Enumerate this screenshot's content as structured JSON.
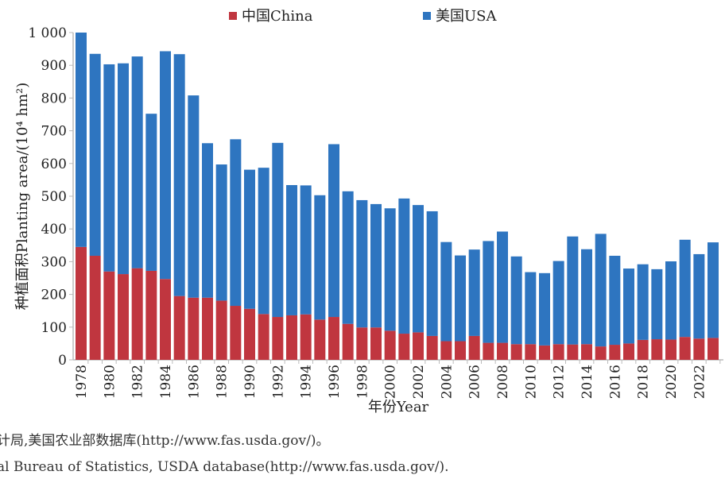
{
  "chart_data": {
    "type": "bar",
    "stacked": true,
    "legend": [
      "中国China",
      "美国USA"
    ],
    "legend_position": "top",
    "xlabel": "年份Year",
    "ylabel": "种植面积Planting area/(10⁴ hm²)",
    "ylim": [
      0,
      1000
    ],
    "yticks": [
      "0",
      "100",
      "200",
      "300",
      "400",
      "500",
      "600",
      "700",
      "800",
      "900",
      "1 000"
    ],
    "categories": [
      1978,
      1979,
      1980,
      1981,
      1982,
      1983,
      1984,
      1985,
      1986,
      1987,
      1988,
      1989,
      1990,
      1991,
      1992,
      1993,
      1994,
      1995,
      1996,
      1997,
      1998,
      1999,
      2000,
      2001,
      2002,
      2003,
      2004,
      2005,
      2006,
      2007,
      2008,
      2009,
      2010,
      2011,
      2012,
      2013,
      2014,
      2015,
      2016,
      2017,
      2018,
      2019,
      2020,
      2021,
      2022,
      2023
    ],
    "series": [
      {
        "name": "中国China",
        "color": "#c0363f",
        "values": [
          345,
          318,
          270,
          262,
          280,
          272,
          247,
          195,
          190,
          190,
          181,
          165,
          156,
          140,
          131,
          136,
          139,
          123,
          131,
          110,
          99,
          99,
          89,
          80,
          84,
          73,
          57,
          57,
          73,
          52,
          52,
          48,
          48,
          44,
          48,
          47,
          48,
          41,
          46,
          50,
          61,
          63,
          62,
          70,
          65,
          67
        ]
      },
      {
        "name": "美国USA",
        "color": "#2e75c0",
        "values": [
          655,
          617,
          633,
          644,
          647,
          480,
          696,
          739,
          618,
          472,
          416,
          509,
          425,
          447,
          532,
          398,
          394,
          380,
          528,
          405,
          389,
          377,
          374,
          413,
          389,
          381,
          303,
          262,
          264,
          311,
          340,
          268,
          220,
          221,
          254,
          330,
          290,
          344,
          272,
          229,
          231,
          214,
          239,
          297,
          258,
          292
        ]
      }
    ]
  },
  "caption": {
    "line1": "计局,美国农业部数据库(http://www.fas.usda.gov/)。",
    "line2": "al Bureau of Statistics, USDA database(http://www.fas.usda.gov/)."
  }
}
